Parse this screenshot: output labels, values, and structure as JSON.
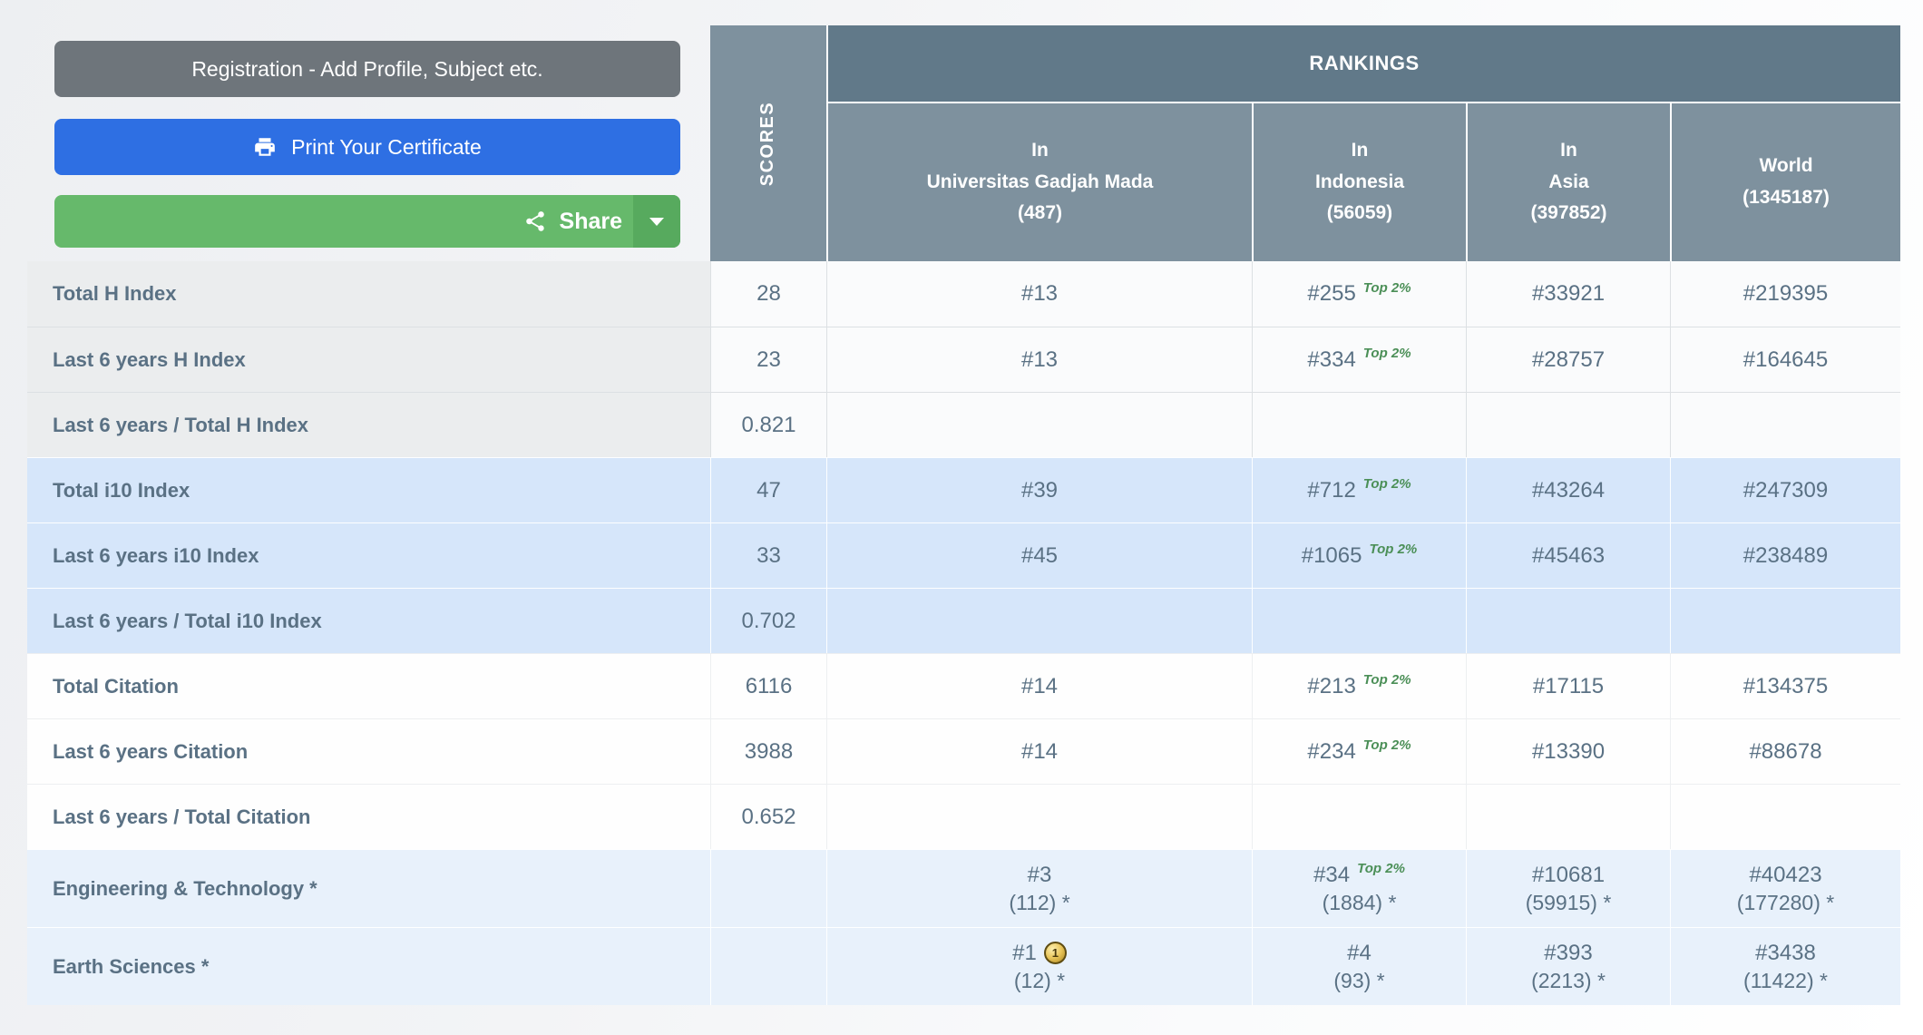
{
  "actions": {
    "registration_label": "Registration - Add Profile, Subject etc.",
    "print_label": "Print Your Certificate",
    "share_label": "Share"
  },
  "colors": {
    "registration_gray": "#6e757b",
    "print_blue": "#2e6fe3",
    "share_green": "#66b96b",
    "share_caret_green": "#57aa5e",
    "rankings_header_slate": "#617989",
    "subheader_slate": "#7e919e",
    "table_text_slate": "#5a7184",
    "top2_badge_green": "#4b8f57",
    "row_blue": "#d6e6fa",
    "row_light_blue": "#e8f1fb",
    "row_gray": "#ebedee"
  },
  "table": {
    "scores_header": "SCORES",
    "rankings_header": "RANKINGS",
    "medal_label": "1",
    "columns": [
      {
        "id": "university",
        "lines": [
          "In",
          "Universitas Gadjah Mada",
          "(487)"
        ]
      },
      {
        "id": "indonesia",
        "lines": [
          "In",
          "Indonesia",
          "(56059)"
        ]
      },
      {
        "id": "asia",
        "lines": [
          "In",
          "Asia",
          "(397852)"
        ]
      },
      {
        "id": "world",
        "lines": [
          "World",
          "(1345187)"
        ]
      }
    ],
    "rows": [
      {
        "label": "Total H Index",
        "group": "hindex",
        "score": "28",
        "cells": [
          {
            "rank": "#13"
          },
          {
            "rank": "#255",
            "badge": "Top 2%"
          },
          {
            "rank": "#33921"
          },
          {
            "rank": "#219395"
          }
        ]
      },
      {
        "label": "Last 6 years H Index",
        "group": "hindex",
        "score": "23",
        "cells": [
          {
            "rank": "#13"
          },
          {
            "rank": "#334",
            "badge": "Top 2%"
          },
          {
            "rank": "#28757"
          },
          {
            "rank": "#164645"
          }
        ]
      },
      {
        "label": "Last 6 years / Total H Index",
        "group": "hindex",
        "score": "0.821",
        "cells": [
          {},
          {},
          {},
          {}
        ]
      },
      {
        "label": "Total i10 Index",
        "group": "i10",
        "score": "47",
        "cells": [
          {
            "rank": "#39"
          },
          {
            "rank": "#712",
            "badge": "Top 2%"
          },
          {
            "rank": "#43264"
          },
          {
            "rank": "#247309"
          }
        ]
      },
      {
        "label": "Last 6 years i10 Index",
        "group": "i10",
        "score": "33",
        "cells": [
          {
            "rank": "#45"
          },
          {
            "rank": "#1065",
            "badge": "Top 2%"
          },
          {
            "rank": "#45463"
          },
          {
            "rank": "#238489"
          }
        ]
      },
      {
        "label": "Last 6 years / Total i10 Index",
        "group": "i10",
        "score": "0.702",
        "cells": [
          {},
          {},
          {},
          {}
        ]
      },
      {
        "label": "Total Citation",
        "group": "citation",
        "score": "6116",
        "cells": [
          {
            "rank": "#14"
          },
          {
            "rank": "#213",
            "badge": "Top 2%"
          },
          {
            "rank": "#17115"
          },
          {
            "rank": "#134375"
          }
        ]
      },
      {
        "label": "Last 6 years Citation",
        "group": "citation",
        "score": "3988",
        "cells": [
          {
            "rank": "#14"
          },
          {
            "rank": "#234",
            "badge": "Top 2%"
          },
          {
            "rank": "#13390"
          },
          {
            "rank": "#88678"
          }
        ]
      },
      {
        "label": "Last 6 years / Total Citation",
        "group": "citation",
        "score": "0.652",
        "cells": [
          {},
          {},
          {},
          {}
        ]
      },
      {
        "label": "Engineering & Technology *",
        "group": "subject",
        "score": "",
        "cells": [
          {
            "rank": "#3",
            "sub": "(112) *"
          },
          {
            "rank": "#34",
            "badge": "Top 2%",
            "sub": "(1884) *"
          },
          {
            "rank": "#10681",
            "sub": "(59915) *"
          },
          {
            "rank": "#40423",
            "sub": "(177280) *"
          }
        ]
      },
      {
        "label": "Earth Sciences *",
        "group": "subject",
        "score": "",
        "cells": [
          {
            "rank": "#1",
            "medal": true,
            "sub": "(12) *"
          },
          {
            "rank": "#4",
            "sub": "(93) *"
          },
          {
            "rank": "#393",
            "sub": "(2213) *"
          },
          {
            "rank": "#3438",
            "sub": "(11422) *"
          }
        ]
      }
    ]
  }
}
